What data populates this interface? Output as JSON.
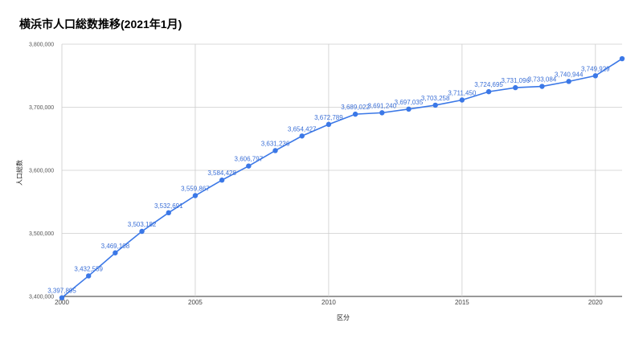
{
  "chart_data": {
    "type": "line",
    "title": "横浜市人口総数推移(2021年1月)",
    "xlabel": "区分",
    "ylabel": "人口総数",
    "x": [
      2000,
      2001,
      2002,
      2003,
      2004,
      2005,
      2006,
      2007,
      2008,
      2009,
      2010,
      2011,
      2012,
      2013,
      2014,
      2015,
      2016,
      2017,
      2018,
      2019,
      2020,
      2021
    ],
    "series": [
      {
        "values": [
          3397895,
          3432559,
          3469108,
          3503182,
          3532691,
          3559867,
          3584428,
          3606797,
          3631236,
          3654427,
          3672789,
          3689022,
          3691240,
          3697035,
          3703258,
          3711450,
          3724695,
          3731096,
          3733084,
          3740944,
          3749929,
          3777000
        ],
        "color": "#3b78e7"
      }
    ],
    "data_labels": [
      "3,397,895",
      "3,432,559",
      "3,469,108",
      "3,503,182",
      "3,532,691",
      "3,559,867",
      "3,584,428",
      "3,606,797",
      "3,631,236",
      "3,654,427",
      "3,672,789",
      "3,689,022",
      "3,691,240",
      "3,697,035",
      "3,703,258",
      "3,711,450",
      "3,724,695",
      "3,731,096",
      "3,733,084",
      "3,740,944",
      "3,749,929",
      ""
    ],
    "xticks": [
      "2000",
      "2005",
      "2010",
      "2015",
      "2020"
    ],
    "xtick_values": [
      2000,
      2005,
      2010,
      2015,
      2020
    ],
    "yticks": [
      "3,400,000",
      "3,500,000",
      "3,600,000",
      "3,700,000",
      "3,800,000"
    ],
    "ytick_values": [
      3400000,
      3500000,
      3600000,
      3700000,
      3800000
    ],
    "xlim": [
      2000,
      2021
    ],
    "ylim": [
      3400000,
      3800000
    ],
    "grid": true,
    "legend": "none"
  }
}
